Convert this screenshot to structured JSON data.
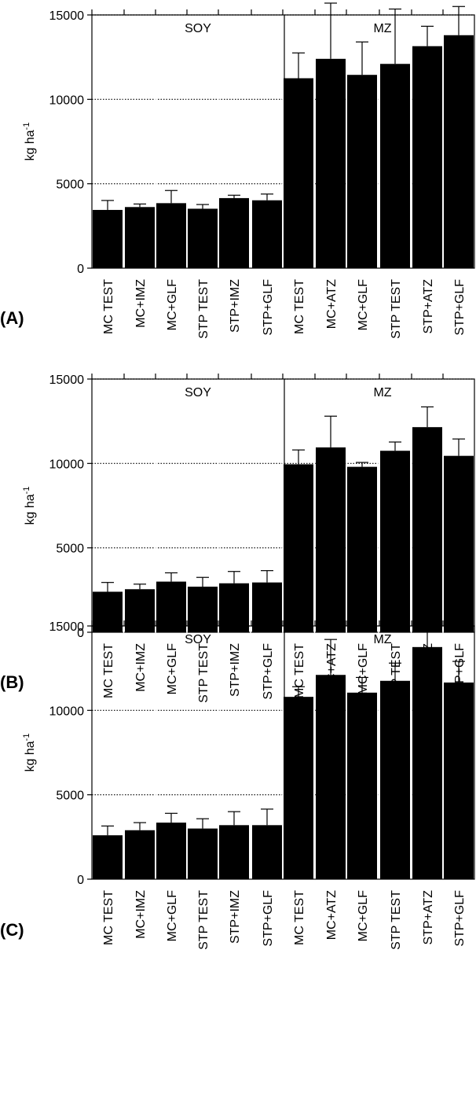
{
  "chart_data": [
    {
      "type": "bar",
      "panel_label": "(A)",
      "ylabel": "kg ha",
      "ylabel_sup": "-1",
      "ylim": [
        0,
        15000
      ],
      "yticks": [
        "0",
        "5000",
        "10000",
        "15000"
      ],
      "grid": "dotted horizontal lines at 5000, 10000, 15000",
      "groups": [
        "SOY",
        "MZ"
      ],
      "categories": [
        "MC TEST",
        "MC+IMZ",
        "MC+GLF",
        "STP TEST",
        "STP+IMZ",
        "STP+GLF",
        "MC TEST",
        "MC+ATZ",
        "MC+GLF",
        "STP TEST",
        "STP+ATZ",
        "STP+GLF"
      ],
      "values": [
        3450,
        3620,
        3850,
        3520,
        4150,
        4020,
        11250,
        12400,
        11450,
        12100,
        13150,
        13800
      ],
      "errors": [
        560,
        180,
        750,
        250,
        170,
        370,
        1500,
        3300,
        1950,
        3250,
        1180,
        1700
      ]
    },
    {
      "type": "bar",
      "panel_label": "(B)",
      "ylabel": "kg ha",
      "ylabel_sup": "-1",
      "ylim": [
        0,
        15000
      ],
      "yticks": [
        "0",
        "5000",
        "10000",
        "15000"
      ],
      "grid": "dotted horizontal lines at 5000, 10000, 15000",
      "groups": [
        "SOY",
        "MZ"
      ],
      "categories": [
        "MC TEST",
        "MC+IMZ",
        "MC+GLF",
        "STP TEST",
        "STP+IMZ",
        "STP+GLF",
        "MC TEST",
        "MC+ATZ",
        "MC+GLF",
        "STP TEST",
        "STP+ATZ",
        "STP+GLF"
      ],
      "values": [
        2400,
        2550,
        3000,
        2700,
        2900,
        2950,
        9950,
        10950,
        9800,
        10750,
        12150,
        10450
      ],
      "errors": [
        550,
        300,
        520,
        550,
        700,
        700,
        850,
        1850,
        260,
        520,
        1200,
        1000
      ]
    },
    {
      "type": "bar",
      "panel_label": "(C)",
      "ylabel": "kg ha",
      "ylabel_sup": "-1",
      "ylim": [
        0,
        15000
      ],
      "yticks": [
        "0",
        "5000",
        "10000",
        "15000"
      ],
      "grid": "dotted horizontal lines at 5000, 10000, 15000",
      "groups": [
        "SOY",
        "MZ"
      ],
      "categories": [
        "MC TEST",
        "MC+IMZ",
        "MC+GLF",
        "STP TEST",
        "STP+IMZ",
        "STP+GLF",
        "MC TEST",
        "MC+ATZ",
        "MC+GLF",
        "STP TEST",
        "STP+ATZ",
        "STP+GLF"
      ],
      "values": [
        2600,
        2900,
        3350,
        3000,
        3200,
        3200,
        10800,
        12100,
        11050,
        11750,
        13750,
        11650
      ],
      "errors": [
        550,
        450,
        550,
        580,
        800,
        950,
        600,
        2100,
        900,
        1050,
        1450,
        1250
      ]
    }
  ]
}
